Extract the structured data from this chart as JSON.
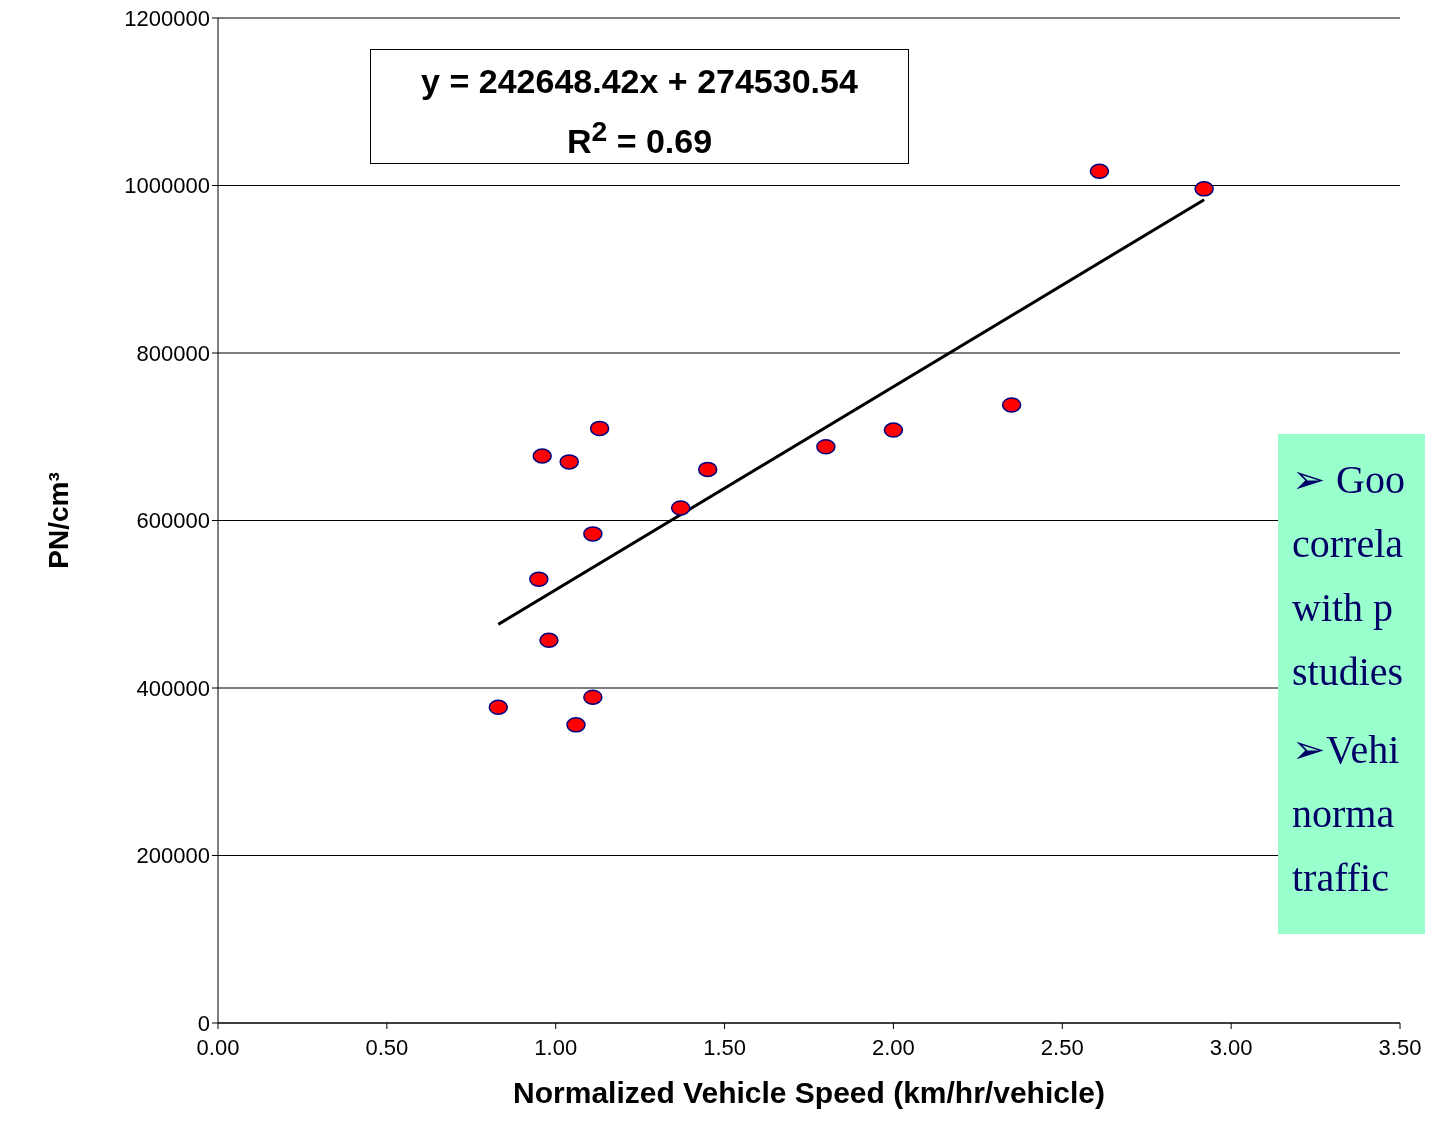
{
  "chart_data": {
    "type": "scatter",
    "xlabel": "Normalized Vehicle Speed (km/hr/vehicle)",
    "ylabel": "PN/cm³",
    "xlim": [
      0,
      3.5
    ],
    "xticks": [
      {
        "value": 0,
        "label": "0.00"
      },
      {
        "value": 0.5,
        "label": "0.50"
      },
      {
        "value": 1,
        "label": "1.00"
      },
      {
        "value": 1.5,
        "label": "1.50"
      },
      {
        "value": 2,
        "label": "2.00"
      },
      {
        "value": 2.5,
        "label": "2.50"
      },
      {
        "value": 3,
        "label": "3.00"
      },
      {
        "value": 3.5,
        "label": "3.50"
      }
    ],
    "ylim": [
      0,
      1200000
    ],
    "yticks": [
      0,
      200000,
      400000,
      600000,
      800000,
      1000000,
      1200000
    ],
    "grid": "y",
    "legend": false,
    "marker": "circle",
    "series": [
      {
        "color": "#ff0000",
        "x": [
          0.83,
          0.96,
          0.95,
          0.98,
          1.04,
          1.06,
          1.11,
          1.11,
          1.13,
          1.37,
          1.45,
          1.8,
          2.0,
          2.35,
          2.61,
          2.92
        ],
        "values": [
          377000,
          677000,
          530000,
          457000,
          670000,
          356000,
          584000,
          389000,
          710000,
          615000,
          661000,
          688000,
          708000,
          738000,
          1017000,
          996000
        ]
      },
      {
        "type": "line",
        "color": "#000000",
        "marker": "none",
        "line_style": "solid",
        "x": [
          0.83,
          2.92
        ],
        "values": [
          476000,
          983000
        ]
      }
    ],
    "annotations": [
      "y = 242648.42x + 274530.54",
      "R$^{2}$ = 0.69",
      "➢ Goo",
      "correla",
      "with p",
      "studies",
      "➢Vehi",
      "norma",
      "traffic"
    ]
  }
}
